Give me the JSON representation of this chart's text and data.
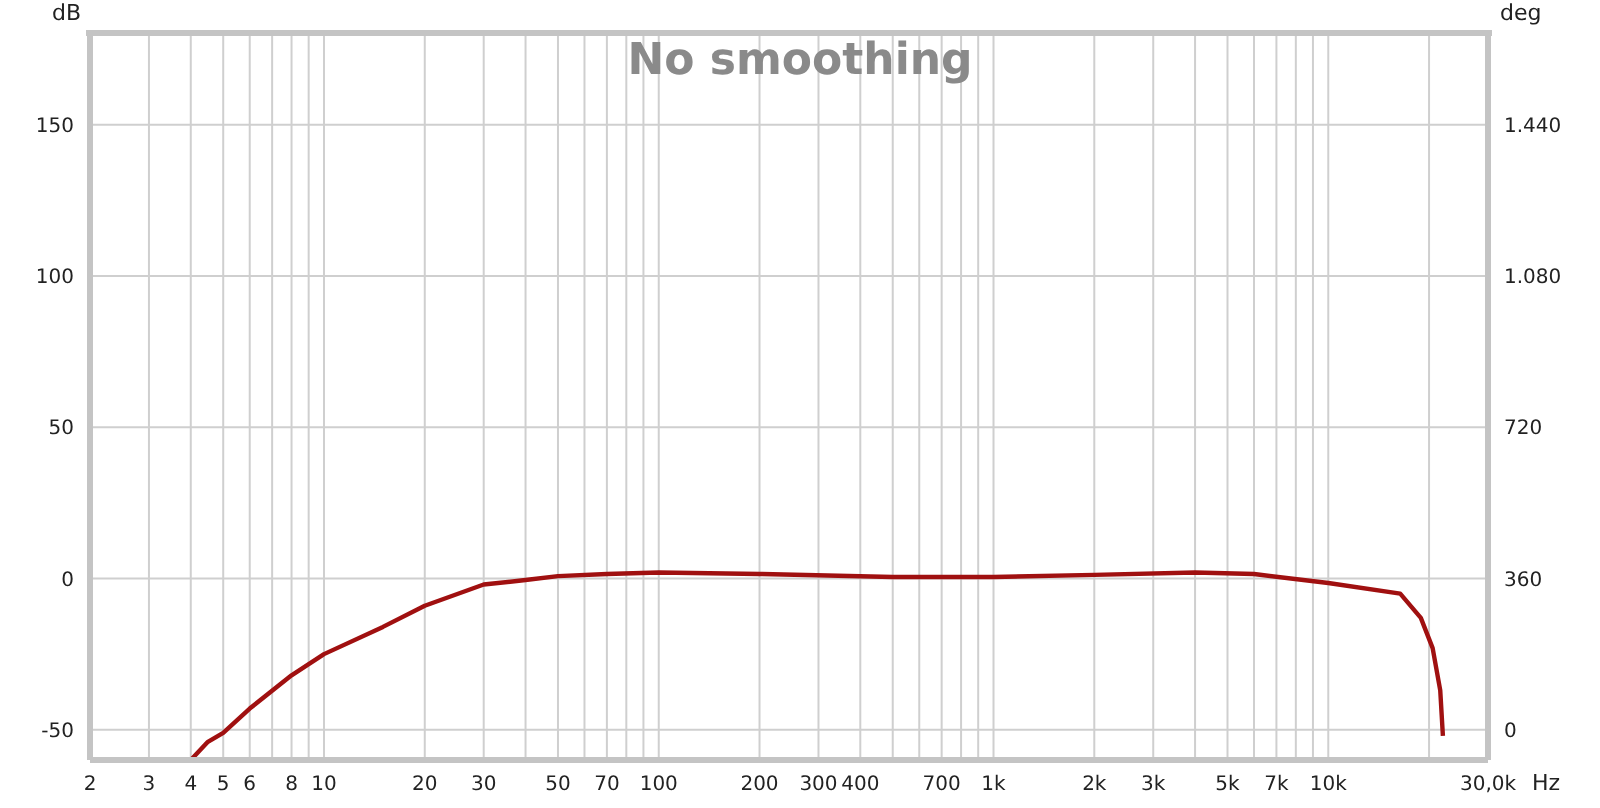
{
  "chart_data": {
    "type": "line",
    "title": "No smoothing",
    "xlabel": "Hz",
    "ylabel": "dB",
    "y2label": "deg",
    "log": "x",
    "grid": true,
    "marker": "none",
    "line_style": "solid",
    "xlim": [
      2,
      30000
    ],
    "xticks": [
      2,
      3,
      4,
      5,
      6,
      {
        "value": 7,
        "label": null
      },
      8,
      {
        "value": 9,
        "label": null
      },
      10,
      20,
      30,
      {
        "value": 40,
        "label": null
      },
      50,
      {
        "value": 60,
        "label": null
      },
      70,
      {
        "value": 80,
        "label": null
      },
      {
        "value": 90,
        "label": null
      },
      100,
      200,
      300,
      400,
      {
        "value": 500,
        "label": null
      },
      {
        "value": 600,
        "label": null
      },
      700,
      {
        "value": 800,
        "label": null
      },
      {
        "value": 900,
        "label": null
      },
      {
        "value": 1000,
        "label": "1k"
      },
      {
        "value": 2000,
        "label": "2k"
      },
      {
        "value": 3000,
        "label": "3k"
      },
      {
        "value": 4000,
        "label": null
      },
      {
        "value": 5000,
        "label": "5k"
      },
      {
        "value": 6000,
        "label": null
      },
      {
        "value": 7000,
        "label": "7k"
      },
      {
        "value": 8000,
        "label": null
      },
      {
        "value": 9000,
        "label": null
      },
      {
        "value": 10000,
        "label": "10k"
      },
      {
        "value": 20000,
        "label": null
      },
      {
        "value": 30000,
        "label": "30,0k"
      }
    ],
    "ylim": [
      -60,
      180
    ],
    "yticks": [
      -50,
      0,
      50,
      100,
      150
    ],
    "y2lim": [
      -72,
      1656
    ],
    "y2ticks": [
      0,
      360,
      720,
      {
        "value": 1080,
        "label": "1.080"
      },
      {
        "value": 1440,
        "label": "1.440"
      }
    ],
    "x": [
      4,
      4.5,
      5,
      6,
      8,
      10,
      15,
      20,
      30,
      40,
      50,
      70,
      100,
      200,
      500,
      1000,
      2000,
      4000,
      6000,
      10000,
      16400,
      18900,
      20500,
      21600,
      22000
    ],
    "series": [
      {
        "color": "#a01010",
        "values": [
          -60,
          -54,
          -51,
          -43,
          -32,
          -25,
          -16,
          -9,
          -2,
          -0.5,
          0.8,
          1.5,
          2,
          1.5,
          0.5,
          0.5,
          1.2,
          2,
          1.5,
          -1.5,
          -5,
          -13,
          -23,
          -37,
          -52
        ]
      }
    ]
  }
}
